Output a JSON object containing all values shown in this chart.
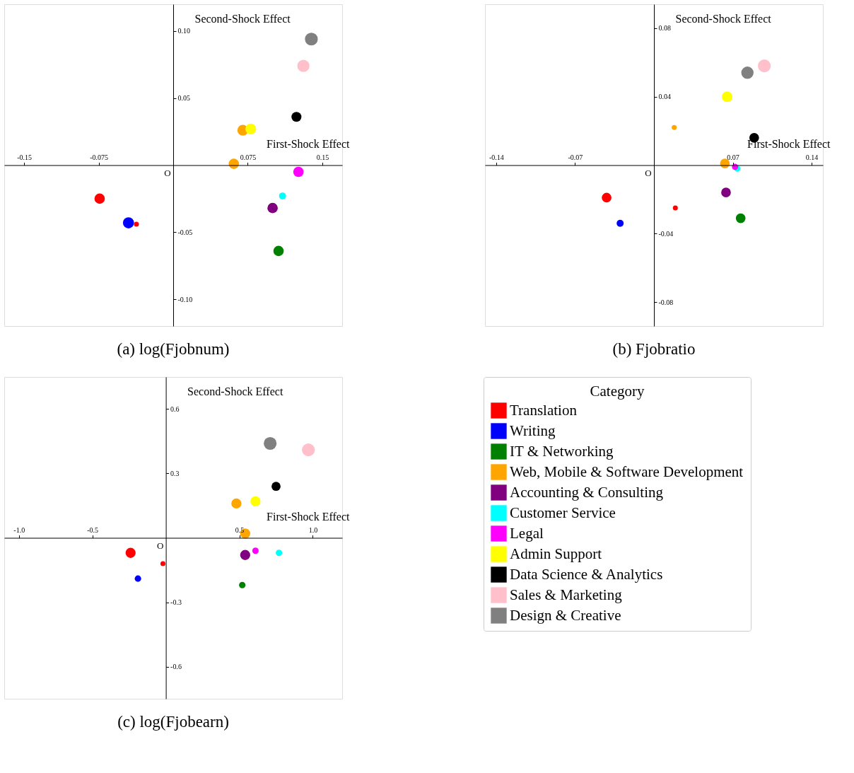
{
  "chart_data": [
    {
      "type": "bubble",
      "title": "(a) log(Fjobnum)",
      "xlabel": "First-Shock Effect",
      "ylabel": "Second-Shock Effect",
      "xlim": [
        -0.17,
        0.17
      ],
      "ylim": [
        -0.12,
        0.12
      ],
      "xticks": [
        -0.15,
        -0.075,
        0.075,
        0.15
      ],
      "yticks": [
        {
          "value": 0.1,
          "label": "0.10"
        },
        0.05,
        -0.05,
        {
          "value": -0.1,
          "label": "-0.10"
        }
      ],
      "grid": false,
      "legend": false,
      "annotations": [
        "O"
      ],
      "series": [
        {
          "color": "#ff0000",
          "x": [
            -0.074,
            -0.037
          ],
          "values": [
            -0.025,
            -0.044
          ],
          "sizes": [
            0.65,
            0.15
          ]
        },
        {
          "color": "#0000ff",
          "x": [
            -0.045
          ],
          "values": [
            -0.043
          ],
          "sizes": [
            0.75
          ]
        },
        {
          "color": "#008000",
          "x": [
            0.106
          ],
          "values": [
            -0.064
          ],
          "sizes": [
            0.65
          ]
        },
        {
          "color": "#ffa500",
          "x": [
            0.07,
            0.061
          ],
          "values": [
            0.026,
            0.001
          ],
          "sizes": [
            0.7,
            0.65
          ]
        },
        {
          "color": "#800080",
          "x": [
            0.1
          ],
          "values": [
            -0.032
          ],
          "sizes": [
            0.65
          ]
        },
        {
          "color": "#00ffff",
          "x": [
            0.11
          ],
          "values": [
            -0.023
          ],
          "sizes": [
            0.3
          ]
        },
        {
          "color": "#ff00ff",
          "x": [
            0.126
          ],
          "values": [
            -0.005
          ],
          "sizes": [
            0.65
          ]
        },
        {
          "color": "#ffff00",
          "x": [
            0.078
          ],
          "values": [
            0.027
          ],
          "sizes": [
            0.7
          ]
        },
        {
          "color": "#000000",
          "x": [
            0.124
          ],
          "values": [
            0.036
          ],
          "sizes": [
            0.6
          ]
        },
        {
          "color": "#ffc0cb",
          "x": [
            0.131
          ],
          "values": [
            0.074
          ],
          "sizes": [
            0.9
          ]
        },
        {
          "color": "#808080",
          "x": [
            0.139
          ],
          "values": [
            0.094
          ],
          "sizes": [
            1
          ]
        }
      ]
    },
    {
      "type": "bubble",
      "title": "(b) Fjobratio",
      "xlabel": "First-Shock Effect",
      "ylabel": "Second-Shock Effect",
      "xlim": [
        -0.15,
        0.15
      ],
      "ylim": [
        -0.094,
        0.094
      ],
      "xticks": [
        -0.14,
        -0.07,
        0.07,
        0.14
      ],
      "yticks": [
        0.08,
        0.04,
        -0.04,
        -0.08
      ],
      "grid": false,
      "legend": false,
      "annotations": [
        "O"
      ],
      "series": [
        {
          "color": "#ff0000",
          "x": [
            -0.042,
            0.019
          ],
          "values": [
            -0.019,
            -0.025
          ],
          "sizes": [
            0.57,
            0.15
          ]
        },
        {
          "color": "#0000ff",
          "x": [
            -0.03
          ],
          "values": [
            -0.034
          ],
          "sizes": [
            0.3
          ]
        },
        {
          "color": "#008000",
          "x": [
            0.077
          ],
          "values": [
            -0.031
          ],
          "sizes": [
            0.57
          ]
        },
        {
          "color": "#ffa500",
          "x": [
            0.063,
            0.018
          ],
          "values": [
            0.001,
            0.022
          ],
          "sizes": [
            0.57,
            0.15
          ]
        },
        {
          "color": "#800080",
          "x": [
            0.064
          ],
          "values": [
            -0.016
          ],
          "sizes": [
            0.57
          ]
        },
        {
          "color": "#00ffff",
          "x": [
            0.074
          ],
          "values": [
            -0.002
          ],
          "sizes": [
            0.23
          ]
        },
        {
          "color": "#ff00ff",
          "x": [
            0.072
          ],
          "values": [
            -0.001
          ],
          "sizes": [
            0.23
          ]
        },
        {
          "color": "#ffff00",
          "x": [
            0.065
          ],
          "values": [
            0.04
          ],
          "sizes": [
            0.68
          ]
        },
        {
          "color": "#000000",
          "x": [
            0.089
          ],
          "values": [
            0.016
          ],
          "sizes": [
            0.57
          ]
        },
        {
          "color": "#ffc0cb",
          "x": [
            0.098
          ],
          "values": [
            0.058
          ],
          "sizes": [
            1
          ]
        },
        {
          "color": "#808080",
          "x": [
            0.083
          ],
          "values": [
            0.054
          ],
          "sizes": [
            0.92
          ]
        }
      ]
    },
    {
      "type": "bubble",
      "title": "(c) log(Fjobearn)",
      "xlabel": "First-Shock Effect",
      "ylabel": "Second-Shock Effect",
      "xlim": [
        -1.1,
        1.2
      ],
      "ylim": [
        -0.75,
        0.75
      ],
      "xticks": [
        {
          "value": -1,
          "label": "-1.0"
        },
        -0.5,
        0.5,
        {
          "value": 1,
          "label": "1.0"
        }
      ],
      "yticks": [
        0.6,
        0.3,
        -0.3,
        -0.6
      ],
      "grid": false,
      "legend": "right",
      "legend_title": "Category",
      "annotations": [
        "O"
      ],
      "series": [
        {
          "name": "Translation",
          "color": "#ff0000",
          "x": [
            -0.24,
            -0.02
          ],
          "values": [
            -0.07,
            -0.12
          ],
          "sizes": [
            0.62,
            0.15
          ]
        },
        {
          "name": "Writing",
          "color": "#0000ff",
          "x": [
            -0.19
          ],
          "values": [
            -0.19
          ],
          "sizes": [
            0.25
          ]
        },
        {
          "name": "IT & Networking",
          "color": "#008000",
          "x": [
            0.52
          ],
          "values": [
            -0.22
          ],
          "sizes": [
            0.25
          ]
        },
        {
          "name": "Web, Mobile & Software Development",
          "color": "#ffa500",
          "x": [
            0.48,
            0.54
          ],
          "values": [
            0.16,
            0.02
          ],
          "sizes": [
            0.62,
            0.62
          ]
        },
        {
          "name": "Accounting & Consulting",
          "color": "#800080",
          "x": [
            0.54
          ],
          "values": [
            -0.08
          ],
          "sizes": [
            0.62
          ]
        },
        {
          "name": "Customer Service",
          "color": "#00ffff",
          "x": [
            0.77
          ],
          "values": [
            -0.07
          ],
          "sizes": [
            0.25
          ]
        },
        {
          "name": "Legal",
          "color": "#ff00ff",
          "x": [
            0.61
          ],
          "values": [
            -0.06
          ],
          "sizes": [
            0.25
          ]
        },
        {
          "name": "Admin Support",
          "color": "#ffff00",
          "x": [
            0.61
          ],
          "values": [
            0.17
          ],
          "sizes": [
            0.62
          ]
        },
        {
          "name": "Data Science & Analytics",
          "color": "#000000",
          "x": [
            0.75
          ],
          "values": [
            0.24
          ],
          "sizes": [
            0.5
          ]
        },
        {
          "name": "Sales & Marketing",
          "color": "#ffc0cb",
          "x": [
            0.97
          ],
          "values": [
            0.41
          ],
          "sizes": [
            1
          ]
        },
        {
          "name": "Design & Creative",
          "color": "#808080",
          "x": [
            0.71
          ],
          "values": [
            0.44
          ],
          "sizes": [
            1
          ]
        }
      ]
    }
  ]
}
